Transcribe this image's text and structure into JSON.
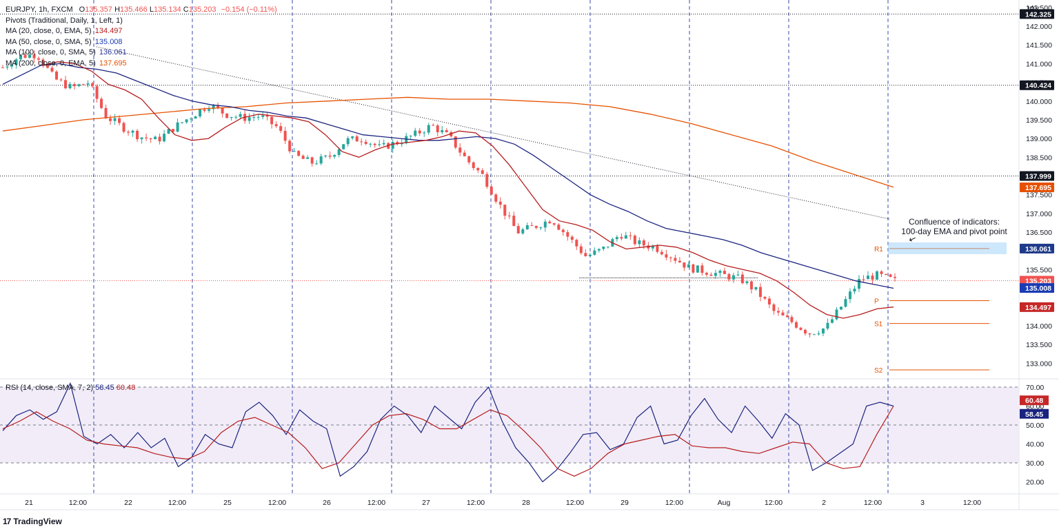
{
  "header": {
    "symbol": "EURJPY, 1h, FXCM",
    "o_label": "O",
    "o_value": "135.357",
    "h_label": "H",
    "h_value": "135.466",
    "l_label": "L",
    "l_value": "135.134",
    "c_label": "C",
    "c_value": "135.203",
    "change": "−0.154 (−0.11%)",
    "pivots": "Pivots (Traditional, Daily, 1, Left, 1)",
    "ma20_label": "MA (20, close, 0, EMA, 5)",
    "ma20_value": "134.497",
    "ma50_label": "MA (50, close, 0, SMA, 5)",
    "ma50_value": "135.008",
    "ma100_label": "MA (100, close, 0, SMA, 5)",
    "ma100_value": "136.061",
    "ma200_label": "MA (200, close, 0, EMA, 5)",
    "ma200_value": "137.695",
    "rsi_label": "RSI (14, close, SMA, 7, 2)",
    "rsi_value": "58.45",
    "rsi_ma_value": "60.48"
  },
  "currency": "JPY",
  "annotation": {
    "line1": "Confluence of indicators:",
    "line2": "100-day EMA and pivot point",
    "arrow": "↙"
  },
  "brand": {
    "mark": "17",
    "name": "TradingView"
  },
  "colors": {
    "up": "#26a69a",
    "down": "#ef5350",
    "ma20": "#b71c1c",
    "ma50": "#1a237e",
    "ma100": "#283593",
    "ma200": "#e65100",
    "pivot": "#e65100",
    "rsi": "#1a237e",
    "rsi_ma": "#b71c1c",
    "rsi_band": "#ede7f6"
  },
  "chart_data": [
    {
      "type": "candlestick",
      "title": "EURJPY, 1h, FXCM",
      "ylim": [
        132.6,
        142.7
      ],
      "y_ticks": [
        "142.500",
        "142.000",
        "141.500",
        "141.000",
        "140.500",
        "140.000",
        "139.500",
        "139.000",
        "138.500",
        "138.000",
        "137.500",
        "137.000",
        "136.500",
        "136.000",
        "135.500",
        "135.000",
        "134.500",
        "134.000",
        "133.500",
        "133.000"
      ],
      "x_ticks": [
        "21",
        "12:00",
        "22",
        "12:00",
        "25",
        "12:00",
        "26",
        "12:00",
        "27",
        "12:00",
        "28",
        "12:00",
        "29",
        "12:00",
        "Aug",
        "12:00",
        "2",
        "12:00",
        "3",
        "12:00"
      ],
      "price_labels": [
        {
          "value": "142.325",
          "color": "#131722",
          "text_color": "#ffffff",
          "y": 142.325
        },
        {
          "value": "140.424",
          "color": "#131722",
          "text_color": "#ffffff",
          "y": 140.424
        },
        {
          "value": "137.999",
          "color": "#131722",
          "text_color": "#ffffff",
          "y": 137.999
        },
        {
          "value": "137.695",
          "color": "#e65100",
          "text_color": "#ffffff",
          "y": 137.695
        },
        {
          "value": "136.061",
          "color": "#1e3a8a",
          "text_color": "#ffffff",
          "y": 136.061
        },
        {
          "value": "135.203",
          "color": "#ef5350",
          "text_color": "#ffffff",
          "y": 135.203
        },
        {
          "value": "135.008",
          "color": "#1a3bb3",
          "text_color": "#ffffff",
          "y": 135.008
        },
        {
          "value": "134.497",
          "color": "#c62828",
          "text_color": "#ffffff",
          "y": 134.497
        }
      ],
      "pivots": [
        {
          "name": "R1",
          "value": 136.06
        },
        {
          "name": "P",
          "value": 134.67
        },
        {
          "name": "S1",
          "value": 134.06
        },
        {
          "name": "S2",
          "value": 132.82
        }
      ],
      "horizontal_lines": [
        142.325,
        140.424,
        137.999
      ],
      "current_price": 135.203,
      "support_line": 135.28,
      "trendline": {
        "from": [
          0,
          141.45
        ],
        "to": [
          1,
          136.85
        ]
      },
      "close_path": [
        140.9,
        141.2,
        141.25,
        140.6,
        140.35,
        140.5,
        139.6,
        139.3,
        139.05,
        138.95,
        139.3,
        139.6,
        139.9,
        139.65,
        139.55,
        139.6,
        139.3,
        138.55,
        138.35,
        138.5,
        138.95,
        139.0,
        138.75,
        138.9,
        139.1,
        139.35,
        139.05,
        138.45,
        138.0,
        137.2,
        136.5,
        136.65,
        136.85,
        136.35,
        135.85,
        136.05,
        136.45,
        136.2,
        136.1,
        135.85,
        135.55,
        135.45,
        135.35,
        135.25,
        134.9,
        134.35,
        134.1,
        133.8,
        133.95,
        134.6,
        135.25,
        135.35,
        135.2
      ],
      "ma20_path": [
        140.95,
        141.05,
        141.0,
        140.8,
        140.45,
        140.3,
        140.05,
        139.55,
        139.1,
        138.95,
        139.0,
        139.3,
        139.55,
        139.65,
        139.6,
        139.55,
        139.45,
        139.1,
        138.65,
        138.5,
        138.7,
        138.85,
        138.9,
        138.95,
        139.05,
        139.2,
        139.15,
        138.8,
        138.3,
        137.7,
        137.1,
        136.8,
        136.7,
        136.55,
        136.25,
        136.05,
        136.1,
        136.15,
        136.1,
        135.95,
        135.75,
        135.6,
        135.5,
        135.4,
        135.2,
        134.9,
        134.55,
        134.3,
        134.2,
        134.3,
        134.45,
        134.5
      ],
      "ma50_path": [
        140.45,
        140.7,
        140.95,
        141.0,
        140.9,
        140.85,
        140.75,
        140.55,
        140.35,
        140.15,
        140.0,
        139.9,
        139.85,
        139.75,
        139.7,
        139.6,
        139.55,
        139.4,
        139.25,
        139.1,
        139.05,
        139.0,
        138.95,
        138.95,
        139.0,
        139.05,
        139.0,
        138.85,
        138.55,
        138.2,
        137.85,
        137.5,
        137.25,
        137.05,
        136.8,
        136.6,
        136.5,
        136.4,
        136.3,
        136.15,
        135.95,
        135.8,
        135.65,
        135.5,
        135.35,
        135.2,
        135.1,
        135.0
      ],
      "ma200_path": [
        139.2,
        139.35,
        139.5,
        139.6,
        139.7,
        139.8,
        139.85,
        139.95,
        140.0,
        140.05,
        140.1,
        140.05,
        140.05,
        140.0,
        139.95,
        139.85,
        139.65,
        139.4,
        139.1,
        138.8,
        138.4,
        138.05,
        137.7
      ],
      "ma100_path": [
        136.06
      ]
    },
    {
      "type": "line",
      "title": "RSI (14, close, SMA, 7, 2)",
      "ylim": [
        14,
        74
      ],
      "y_ticks": [
        "70.00",
        "60.00",
        "50.00",
        "40.00",
        "30.00",
        "20.00"
      ],
      "bands": [
        70,
        50,
        30
      ],
      "series": [
        {
          "name": "RSI",
          "values": [
            47,
            55,
            58,
            53,
            57,
            72,
            44,
            40,
            45,
            38,
            46,
            38,
            43,
            28,
            33,
            45,
            40,
            38,
            57,
            62,
            55,
            45,
            58,
            52,
            48,
            23,
            28,
            36,
            53,
            60,
            55,
            46,
            60,
            54,
            48,
            62,
            70,
            52,
            38,
            30,
            20,
            26,
            35,
            45,
            46,
            37,
            40,
            54,
            60,
            40,
            42,
            55,
            64,
            53,
            46,
            60,
            52,
            43,
            56,
            50,
            26,
            30,
            35,
            40,
            60,
            62,
            60
          ]
        },
        {
          "name": "RSI MA",
          "values": [
            48,
            52,
            57,
            52,
            48,
            42,
            40,
            39,
            38,
            35,
            33,
            32,
            36,
            46,
            52,
            54,
            50,
            46,
            38,
            27,
            30,
            40,
            50,
            55,
            56,
            53,
            48,
            48,
            53,
            58,
            55,
            47,
            38,
            27,
            23,
            27,
            35,
            40,
            42,
            44,
            45,
            39,
            38,
            38,
            36,
            35,
            38,
            41,
            40,
            30,
            27,
            28,
            45,
            60
          ]
        }
      ],
      "value_labels": [
        {
          "value": "60.48",
          "color": "#c62828",
          "y": 60.48
        },
        {
          "value": "58.45",
          "color": "#1a237e",
          "y": 58.45
        }
      ]
    }
  ]
}
